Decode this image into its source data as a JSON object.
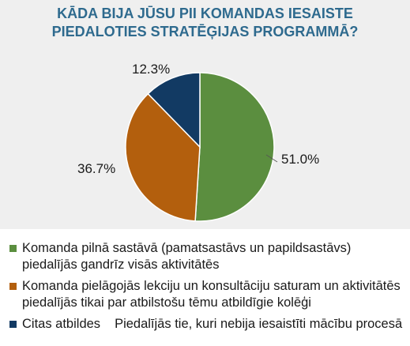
{
  "chart_data": {
    "type": "pie",
    "title_lines": [
      "KĀDA BIJA JŪSU PII KOMANDAS IESAISTE",
      "PIEDALOTIES STRATĒĢIJAS PROGRAMMĀ?"
    ],
    "slices": [
      {
        "label": "Komanda pilnā sastāvā (pamatsastāvs un papildsastāvs) piedalījās gandrīz visās aktivitātēs",
        "value": 51.0,
        "display": "51.0%",
        "color": "#5b8e3f"
      },
      {
        "label": "Komanda pielāgojās lekciju un konsultāciju saturam un aktivitātēs piedalījās tikai par atbilstošu tēmu atbildīgie kolēģi",
        "value": 36.7,
        "display": "36.7%",
        "color": "#b35f0d"
      },
      {
        "label": "Citas atbildes",
        "value": 12.3,
        "display": "12.3%",
        "color": "#123a63"
      }
    ],
    "legend_note": "Piedalījās tie, kuri nebija iesaistīti mācību procesā",
    "legend_position": "bottom"
  }
}
